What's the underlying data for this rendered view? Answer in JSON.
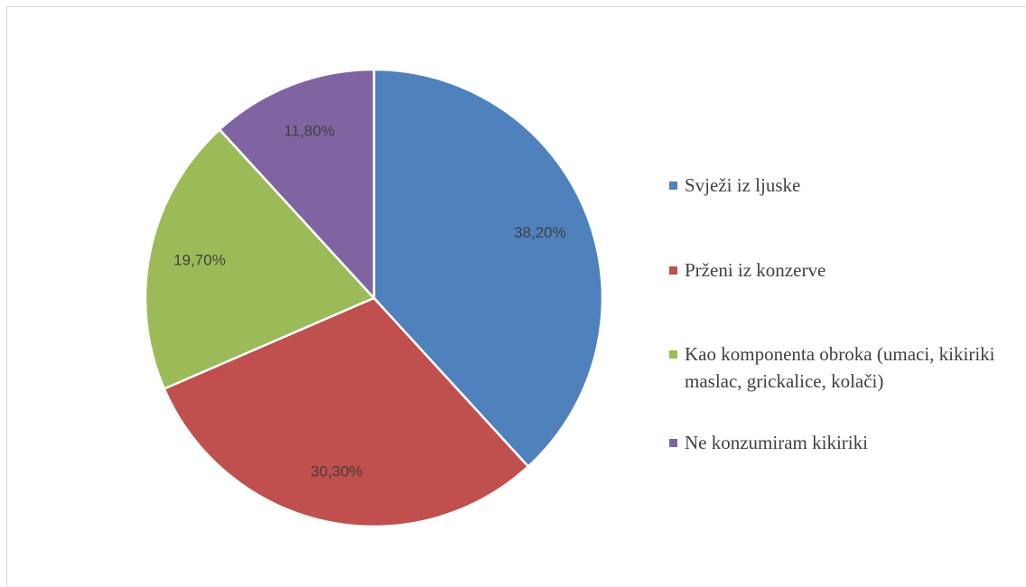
{
  "chart_data": {
    "type": "pie",
    "categories": [
      "Svježi iz ljuske",
      "Prženi iz konzerve",
      "Kao komponenta obroka (umaci, kikiriki maslac, grickalice, kolači)",
      "Ne konzumiram kikiriki"
    ],
    "values": [
      38.2,
      30.3,
      19.7,
      11.8
    ],
    "value_labels": [
      "38,20%",
      "30,30%",
      "19,70%",
      "11,80%"
    ],
    "colors": [
      "#4f81bd",
      "#c0504d",
      "#9bbb59",
      "#8064a2"
    ],
    "legend": "right"
  }
}
